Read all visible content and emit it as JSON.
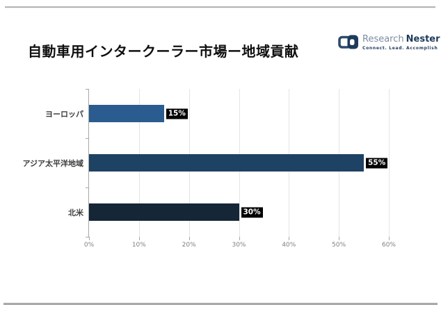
{
  "page": {
    "title": "自動車用インタークーラー市場ー地域貢献"
  },
  "logo": {
    "brand_first": "Research",
    "brand_second": "Nester",
    "tagline": "Connect. Lead. Accomplish",
    "brand_first_color": "#7b8ea0",
    "brand_second_color": "#1e3a5c"
  },
  "chart_data": {
    "type": "bar",
    "orientation": "horizontal",
    "title": "自動車用インタークーラー市場ー地域貢献",
    "categories": [
      "ヨーロッパ",
      "アジア太平洋地域",
      "北米"
    ],
    "values": [
      15,
      55,
      30
    ],
    "value_labels": [
      "15%",
      "55%",
      "30%"
    ],
    "bar_colors": [
      "#2b5c8f",
      "#1e4264",
      "#152637"
    ],
    "x_tick_labels": [
      "0%",
      "10%",
      "20%",
      "30%",
      "40%",
      "50%",
      "60%"
    ],
    "x_tick_values": [
      0,
      10,
      20,
      30,
      40,
      50,
      60
    ],
    "xlim": [
      0,
      60
    ],
    "grid": true,
    "legend": "none",
    "axis_color": "#a6a6a6",
    "grid_color": "#e4e4e4",
    "value_badge_bg": "#000000",
    "value_badge_text": "#ffffff"
  }
}
